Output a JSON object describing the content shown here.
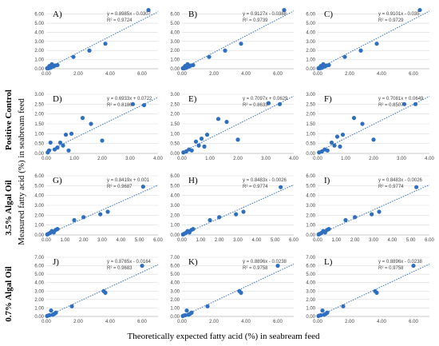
{
  "figure": {
    "ylabel": "Measured fatty acid (%) in seabream feed",
    "xlabel": "Theoretically  expected fatty acid (%) in seabream feed",
    "row_labels": [
      "Positive Control",
      "3.5% Algal Oil",
      "0.7% Algal Oil"
    ],
    "colors": {
      "point": "#2f6fc0",
      "trend": "#2f6fc0",
      "grid": "#d9d9d9"
    }
  },
  "chart_data": [
    {
      "type": "scatter",
      "label": "A)",
      "xlim": [
        0,
        7
      ],
      "ylim": [
        0,
        6.5
      ],
      "x_ticks": [
        "0.00",
        "2.00",
        "4.00",
        "6.00"
      ],
      "y_ticks": [
        "0.00",
        "1.00",
        "2.00",
        "3.00",
        "4.00",
        "5.00",
        "6.00"
      ],
      "equation": "y = 0.8985x - 0.0307",
      "r2": "R² = 0.9724",
      "slope": 0.8985,
      "intercept": -0.0307,
      "points": [
        [
          0.05,
          0.05
        ],
        [
          0.1,
          0.1
        ],
        [
          0.15,
          0.05
        ],
        [
          0.2,
          0.3
        ],
        [
          0.25,
          0.1
        ],
        [
          0.3,
          0.15
        ],
        [
          0.35,
          0.5
        ],
        [
          0.45,
          0.25
        ],
        [
          0.55,
          0.35
        ],
        [
          0.7,
          0.4
        ],
        [
          1.7,
          1.3
        ],
        [
          2.7,
          2.0
        ],
        [
          3.7,
          2.75
        ],
        [
          6.4,
          6.45
        ]
      ]
    },
    {
      "type": "scatter",
      "label": "B)",
      "xlim": [
        0,
        7
      ],
      "ylim": [
        0,
        6.5
      ],
      "x_ticks": [
        "0.00",
        "2.00",
        "4.00",
        "6.00"
      ],
      "y_ticks": [
        "0.00",
        "1.00",
        "2.00",
        "3.00",
        "4.00",
        "5.00",
        "6.00"
      ],
      "equation": "y = 0.9127x - 0.0388",
      "r2": "R² = 0.9739",
      "slope": 0.9127,
      "intercept": -0.0388,
      "points": [
        [
          0.05,
          0.05
        ],
        [
          0.1,
          0.1
        ],
        [
          0.15,
          0.05
        ],
        [
          0.2,
          0.3
        ],
        [
          0.25,
          0.1
        ],
        [
          0.3,
          0.15
        ],
        [
          0.35,
          0.5
        ],
        [
          0.45,
          0.25
        ],
        [
          0.55,
          0.35
        ],
        [
          0.7,
          0.4
        ],
        [
          1.7,
          1.3
        ],
        [
          2.7,
          2.0
        ],
        [
          3.7,
          2.75
        ],
        [
          6.4,
          6.45
        ]
      ]
    },
    {
      "type": "scatter",
      "label": "C)",
      "xlim": [
        0,
        7
      ],
      "ylim": [
        0,
        6.5
      ],
      "x_ticks": [
        "0.00",
        "2.00",
        "4.00",
        "6.00"
      ],
      "y_ticks": [
        "0.00",
        "1.00",
        "2.00",
        "3.00",
        "4.00",
        "5.00",
        "6.00"
      ],
      "equation": "y = 0.9101x - 0.035",
      "r2": "R² = 0.9729",
      "slope": 0.9101,
      "intercept": -0.035,
      "points": [
        [
          0.05,
          0.05
        ],
        [
          0.1,
          0.1
        ],
        [
          0.15,
          0.05
        ],
        [
          0.2,
          0.3
        ],
        [
          0.25,
          0.1
        ],
        [
          0.3,
          0.15
        ],
        [
          0.35,
          0.5
        ],
        [
          0.45,
          0.25
        ],
        [
          0.55,
          0.35
        ],
        [
          0.7,
          0.4
        ],
        [
          1.7,
          1.3
        ],
        [
          2.7,
          2.0
        ],
        [
          3.7,
          2.75
        ],
        [
          6.4,
          6.45
        ]
      ]
    },
    {
      "type": "scatter",
      "label": "D)",
      "xlim": [
        0,
        4
      ],
      "ylim": [
        0,
        3
      ],
      "x_ticks": [
        "0.00",
        "1.00",
        "2.00",
        "3.00",
        "4.00"
      ],
      "y_ticks": [
        "0.00",
        "0.50",
        "1.00",
        "1.50",
        "2.00",
        "2.50",
        "3.00"
      ],
      "equation": "y = 0.6933x + 0.0722",
      "r2": "R² = 0.8186",
      "slope": 0.6933,
      "intercept": 0.0722,
      "points": [
        [
          0.05,
          0.05
        ],
        [
          0.1,
          0.15
        ],
        [
          0.15,
          0.55
        ],
        [
          0.3,
          0.2
        ],
        [
          0.4,
          0.3
        ],
        [
          0.5,
          0.55
        ],
        [
          0.6,
          0.4
        ],
        [
          0.7,
          0.95
        ],
        [
          0.8,
          0.15
        ],
        [
          0.9,
          1.0
        ],
        [
          1.3,
          1.8
        ],
        [
          1.6,
          1.5
        ],
        [
          2.0,
          0.65
        ],
        [
          3.1,
          2.5
        ],
        [
          3.5,
          2.45
        ]
      ]
    },
    {
      "type": "scatter",
      "label": "E)",
      "xlim": [
        0,
        4
      ],
      "ylim": [
        0,
        3
      ],
      "x_ticks": [
        "0.00",
        "1.00",
        "2.00",
        "3.00",
        "4.00"
      ],
      "y_ticks": [
        "0.00",
        "0.50",
        "1.00",
        "1.50",
        "2.00",
        "2.50",
        "3.00"
      ],
      "equation": "y = 0.7097x + 0.0629",
      "r2": "R² = 0.8633",
      "slope": 0.7097,
      "intercept": 0.0629,
      "points": [
        [
          0.05,
          0.05
        ],
        [
          0.15,
          0.1
        ],
        [
          0.25,
          0.2
        ],
        [
          0.35,
          0.15
        ],
        [
          0.5,
          0.6
        ],
        [
          0.6,
          0.4
        ],
        [
          0.7,
          0.75
        ],
        [
          0.8,
          0.35
        ],
        [
          0.9,
          0.95
        ],
        [
          1.3,
          1.75
        ],
        [
          1.6,
          1.6
        ],
        [
          2.0,
          0.7
        ],
        [
          3.1,
          2.55
        ],
        [
          3.5,
          2.5
        ]
      ]
    },
    {
      "type": "scatter",
      "label": "F)",
      "xlim": [
        0,
        4
      ],
      "ylim": [
        0,
        3
      ],
      "x_ticks": [
        "0.00",
        "1.00",
        "2.00",
        "3.00",
        "4.00"
      ],
      "y_ticks": [
        "0.00",
        "0.50",
        "1.00",
        "1.50",
        "2.00",
        "2.50",
        "3.00"
      ],
      "equation": "y = 0.7081x + 0.0649",
      "r2": "R² = 0.8507",
      "slope": 0.7081,
      "intercept": 0.0649,
      "points": [
        [
          0.05,
          0.05
        ],
        [
          0.15,
          0.1
        ],
        [
          0.25,
          0.2
        ],
        [
          0.35,
          0.15
        ],
        [
          0.5,
          0.55
        ],
        [
          0.6,
          0.4
        ],
        [
          0.7,
          0.85
        ],
        [
          0.8,
          0.35
        ],
        [
          0.9,
          0.95
        ],
        [
          1.3,
          1.8
        ],
        [
          1.6,
          1.5
        ],
        [
          2.0,
          0.7
        ],
        [
          3.1,
          2.5
        ],
        [
          3.5,
          2.5
        ]
      ]
    },
    {
      "type": "scatter",
      "label": "G)",
      "xlim": [
        0,
        6
      ],
      "ylim": [
        0,
        6
      ],
      "x_ticks": [
        "0.00",
        "1.00",
        "2.00",
        "3.00",
        "4.00",
        "5.00",
        "6.00"
      ],
      "y_ticks": [
        "0.00",
        "1.00",
        "2.00",
        "3.00",
        "4.00",
        "5.00",
        "6.00"
      ],
      "equation": "y = 0.8419x + 0.001",
      "r2": "R² = 0.9687",
      "slope": 0.8419,
      "intercept": 0.001,
      "points": [
        [
          0.05,
          0.05
        ],
        [
          0.1,
          0.1
        ],
        [
          0.2,
          0.2
        ],
        [
          0.3,
          0.4
        ],
        [
          0.4,
          0.25
        ],
        [
          0.5,
          0.5
        ],
        [
          0.6,
          0.6
        ],
        [
          1.5,
          1.5
        ],
        [
          2.0,
          1.8
        ],
        [
          2.9,
          2.1
        ],
        [
          3.3,
          2.35
        ],
        [
          5.2,
          4.9
        ]
      ]
    },
    {
      "type": "scatter",
      "label": "H)",
      "xlim": [
        0,
        6
      ],
      "ylim": [
        0,
        6
      ],
      "x_ticks": [
        "0.00",
        "1.00",
        "2.00",
        "3.00",
        "4.00",
        "5.00",
        "6.00"
      ],
      "y_ticks": [
        "0.00",
        "1.00",
        "2.00",
        "3.00",
        "4.00",
        "5.00",
        "6.00"
      ],
      "equation": "y = 0.8483x - 0.0026",
      "r2": "R² = 0.9774",
      "slope": 0.8483,
      "intercept": -0.0026,
      "points": [
        [
          0.05,
          0.05
        ],
        [
          0.1,
          0.1
        ],
        [
          0.2,
          0.2
        ],
        [
          0.3,
          0.4
        ],
        [
          0.4,
          0.25
        ],
        [
          0.5,
          0.5
        ],
        [
          0.6,
          0.6
        ],
        [
          1.5,
          1.5
        ],
        [
          2.0,
          1.8
        ],
        [
          2.9,
          2.1
        ],
        [
          3.3,
          2.35
        ],
        [
          5.3,
          4.85
        ]
      ]
    },
    {
      "type": "scatter",
      "label": "I)",
      "xlim": [
        0,
        6
      ],
      "ylim": [
        0,
        6
      ],
      "x_ticks": [
        "0.00",
        "1.00",
        "2.00",
        "3.00",
        "4.00",
        "5.00",
        "6.00"
      ],
      "y_ticks": [
        "0.00",
        "1.00",
        "2.00",
        "3.00",
        "4.00",
        "5.00",
        "6.00"
      ],
      "equation": "y = 0.8483x - 0.0026",
      "r2": "R² = 0.9774",
      "slope": 0.8483,
      "intercept": -0.0026,
      "points": [
        [
          0.05,
          0.05
        ],
        [
          0.1,
          0.1
        ],
        [
          0.2,
          0.2
        ],
        [
          0.3,
          0.4
        ],
        [
          0.4,
          0.25
        ],
        [
          0.5,
          0.5
        ],
        [
          0.6,
          0.6
        ],
        [
          1.5,
          1.5
        ],
        [
          2.0,
          1.8
        ],
        [
          2.9,
          2.1
        ],
        [
          3.3,
          2.35
        ],
        [
          5.3,
          4.85
        ]
      ]
    },
    {
      "type": "scatter",
      "label": "J)",
      "xlim": [
        0,
        7
      ],
      "ylim": [
        0,
        7
      ],
      "x_ticks": [
        "0.00",
        "2.00",
        "4.00",
        "6.00"
      ],
      "y_ticks": [
        "0.00",
        "1.00",
        "2.00",
        "3.00",
        "4.00",
        "5.00",
        "6.00",
        "7.00"
      ],
      "equation": "y = 0.8765x - 0.0164",
      "r2": "R² = 0.9683",
      "slope": 0.8765,
      "intercept": -0.0164,
      "points": [
        [
          0.05,
          0.05
        ],
        [
          0.1,
          0.1
        ],
        [
          0.2,
          0.15
        ],
        [
          0.3,
          0.7
        ],
        [
          0.4,
          0.2
        ],
        [
          0.5,
          0.3
        ],
        [
          0.6,
          0.45
        ],
        [
          1.6,
          1.2
        ],
        [
          3.6,
          3.0
        ],
        [
          3.7,
          2.8
        ],
        [
          6.0,
          6.0
        ]
      ]
    },
    {
      "type": "scatter",
      "label": "K)",
      "xlim": [
        0,
        7
      ],
      "ylim": [
        0,
        7
      ],
      "x_ticks": [
        "0.00",
        "2.00",
        "4.00",
        "6.00"
      ],
      "y_ticks": [
        "0.00",
        "1.00",
        "2.00",
        "3.00",
        "4.00",
        "5.00",
        "6.00",
        "7.00"
      ],
      "equation": "y = 0.8896x - 0.0238",
      "r2": "R² = 0.9758",
      "slope": 0.8896,
      "intercept": -0.0238,
      "points": [
        [
          0.05,
          0.05
        ],
        [
          0.1,
          0.1
        ],
        [
          0.2,
          0.15
        ],
        [
          0.3,
          0.7
        ],
        [
          0.4,
          0.2
        ],
        [
          0.5,
          0.3
        ],
        [
          0.6,
          0.45
        ],
        [
          1.6,
          1.2
        ],
        [
          3.6,
          3.0
        ],
        [
          3.7,
          2.8
        ],
        [
          6.0,
          6.0
        ]
      ]
    },
    {
      "type": "scatter",
      "label": "L)",
      "xlim": [
        0,
        7
      ],
      "ylim": [
        0,
        7
      ],
      "x_ticks": [
        "0.00",
        "2.00",
        "4.00",
        "6.00"
      ],
      "y_ticks": [
        "0.00",
        "1.00",
        "2.00",
        "3.00",
        "4.00",
        "5.00",
        "6.00",
        "7.00"
      ],
      "equation": "y = 0.8896x - 0.0238",
      "r2": "R² = 0.9758",
      "slope": 0.8896,
      "intercept": -0.0238,
      "points": [
        [
          0.05,
          0.05
        ],
        [
          0.1,
          0.1
        ],
        [
          0.2,
          0.15
        ],
        [
          0.3,
          0.7
        ],
        [
          0.4,
          0.2
        ],
        [
          0.5,
          0.3
        ],
        [
          0.6,
          0.45
        ],
        [
          1.6,
          1.2
        ],
        [
          3.6,
          3.0
        ],
        [
          3.7,
          2.8
        ],
        [
          6.0,
          6.0
        ]
      ]
    }
  ]
}
